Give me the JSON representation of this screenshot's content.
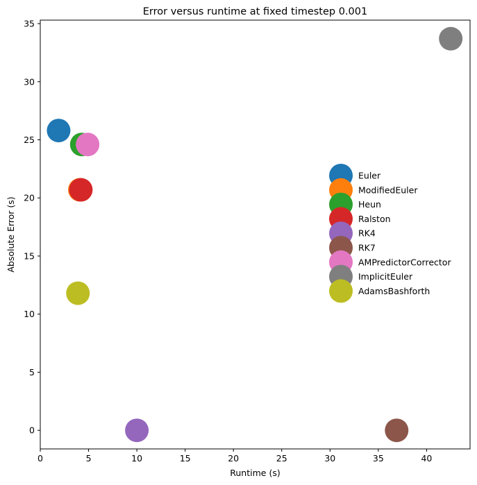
{
  "chart_data": {
    "type": "scatter",
    "title": "Error versus runtime at fixed timestep 0.001",
    "xlabel": "Runtime (s)",
    "ylabel": "Absolute Error (s)",
    "xlim": [
      0,
      44.5
    ],
    "ylim": [
      -1.6,
      35.3
    ],
    "xticks": [
      0,
      5,
      10,
      15,
      20,
      25,
      30,
      35,
      40
    ],
    "yticks": [
      0,
      5,
      10,
      15,
      20,
      25,
      30,
      35
    ],
    "grid": false,
    "legend_position": "center-right",
    "series": [
      {
        "name": "Euler",
        "color": "#1f77b4",
        "x": 1.9,
        "y": 25.8
      },
      {
        "name": "ModifiedEuler",
        "color": "#ff7f0e",
        "x": 4.1,
        "y": 20.7
      },
      {
        "name": "Heun",
        "color": "#2ca02c",
        "x": 4.3,
        "y": 24.6
      },
      {
        "name": "Ralston",
        "color": "#d62728",
        "x": 4.2,
        "y": 20.7
      },
      {
        "name": "RK4",
        "color": "#9467bd",
        "x": 10.0,
        "y": 0.0
      },
      {
        "name": "RK7",
        "color": "#8c564b",
        "x": 36.9,
        "y": 0.0
      },
      {
        "name": "AMPredictorCorrector",
        "color": "#e377c2",
        "x": 4.9,
        "y": 24.6
      },
      {
        "name": "ImplicitEuler",
        "color": "#7f7f7f",
        "x": 42.5,
        "y": 33.7
      },
      {
        "name": "AdamsBashforth",
        "color": "#bcbd22",
        "x": 3.9,
        "y": 11.8
      }
    ]
  }
}
